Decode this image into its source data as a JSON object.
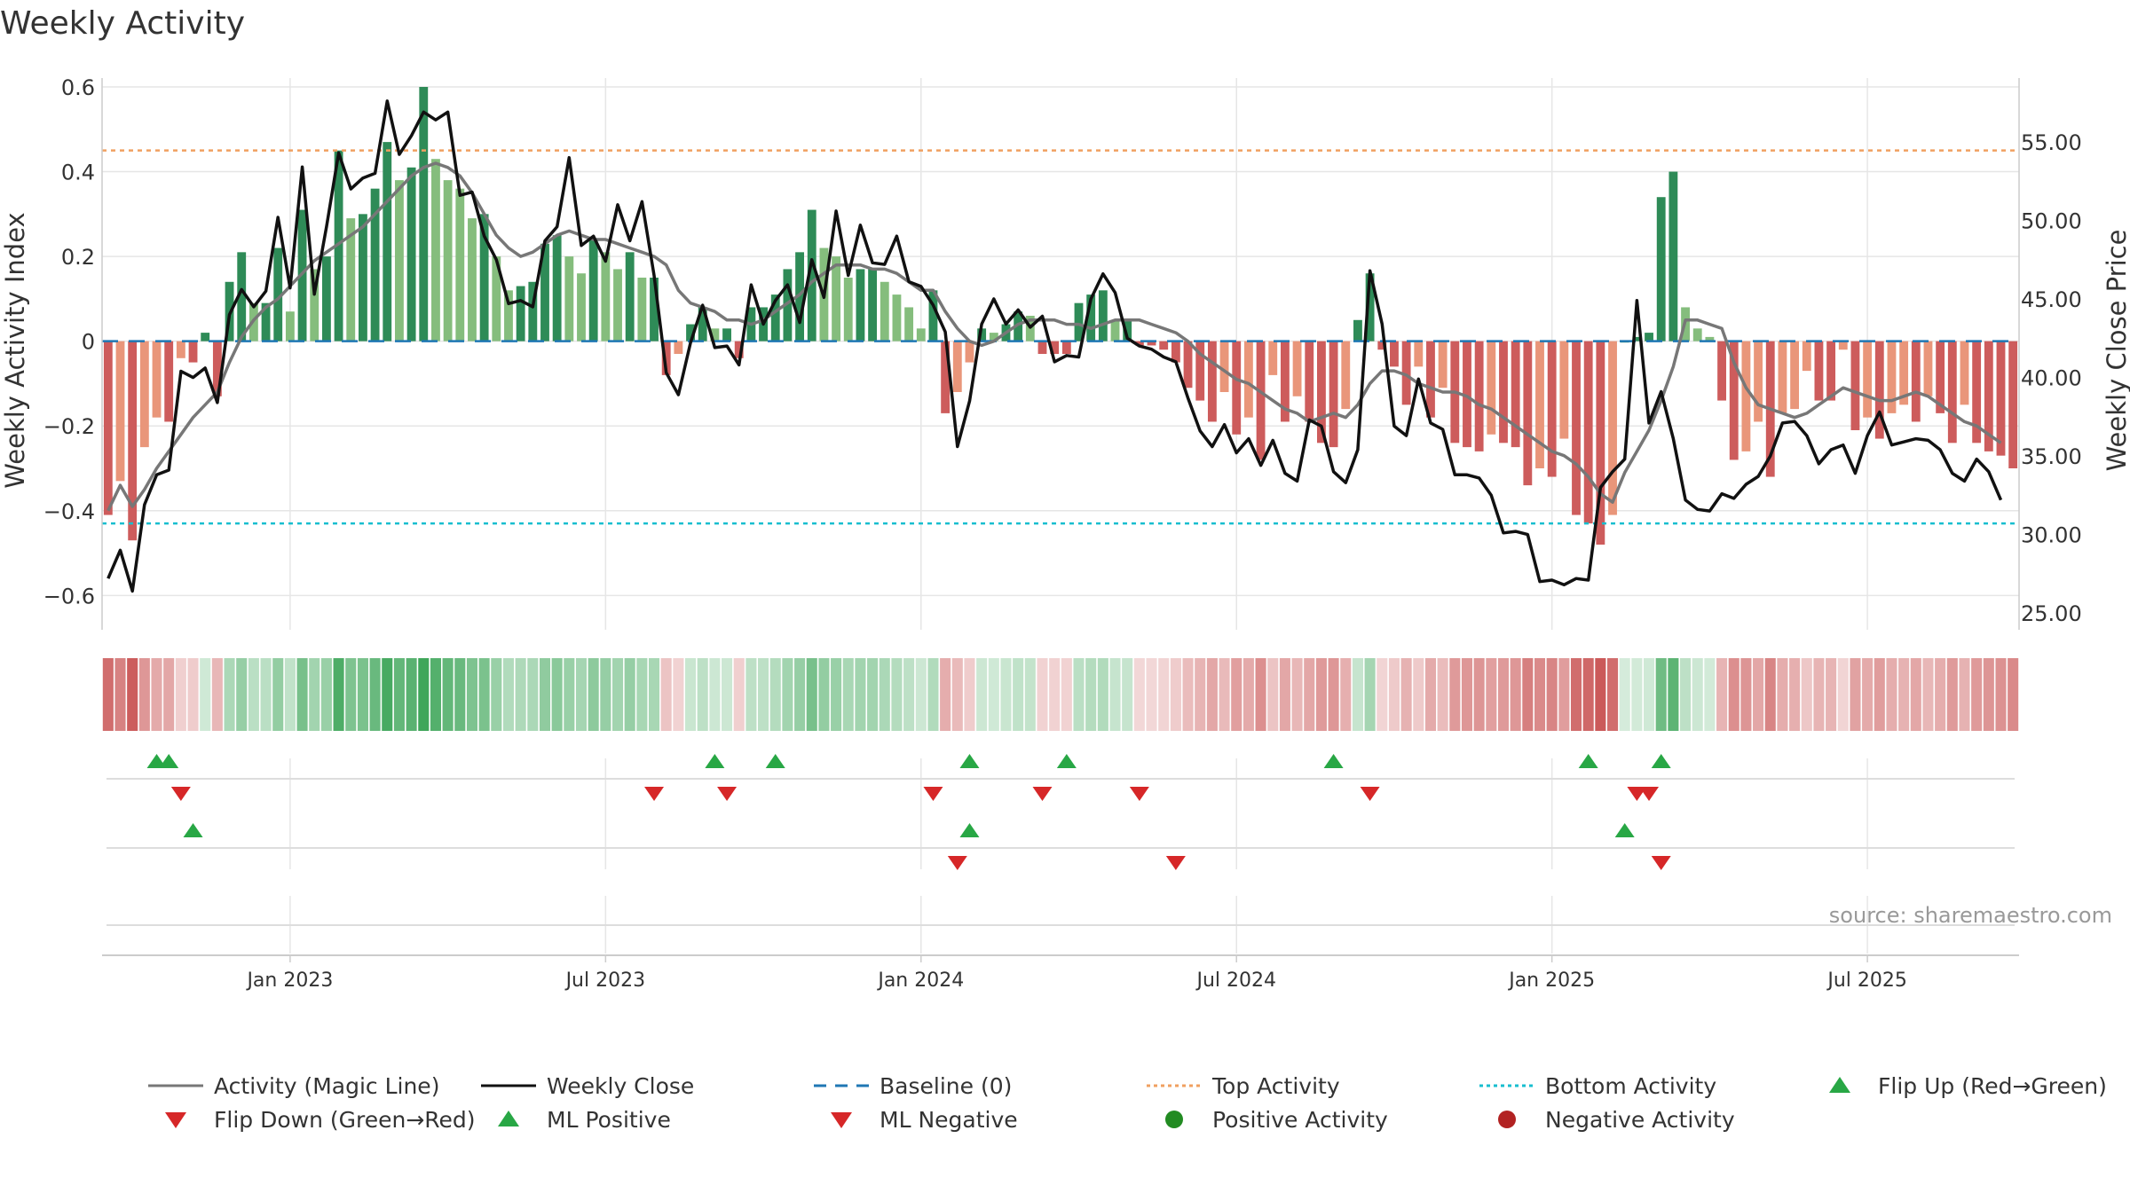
{
  "chart_data": {
    "type": "bar",
    "title": "Weekly Activity",
    "ylabel": "Weekly Activity Index",
    "y2label": "Weekly Close Price",
    "source": "source: sharemaestro.com",
    "ylim": [
      -0.66,
      0.6
    ],
    "y2lim": [
      24.5,
      58.5
    ],
    "yticks": [
      {
        "v": 0.6,
        "label": "0.6"
      },
      {
        "v": 0.4,
        "label": "0.4"
      },
      {
        "v": 0.2,
        "label": "0.2"
      },
      {
        "v": 0,
        "label": "0"
      },
      {
        "v": -0.2,
        "label": "−0.2"
      },
      {
        "v": -0.4,
        "label": "−0.4"
      },
      {
        "v": -0.6,
        "label": "−0.6"
      }
    ],
    "y2ticks": [
      {
        "v": 55,
        "label": "55.00"
      },
      {
        "v": 50,
        "label": "50.00"
      },
      {
        "v": 45,
        "label": "45.00"
      },
      {
        "v": 40,
        "label": "40.00"
      },
      {
        "v": 35,
        "label": "35.00"
      },
      {
        "v": 30,
        "label": "30.00"
      },
      {
        "v": 25,
        "label": "25.00"
      }
    ],
    "xticks": [
      {
        "week": 15,
        "label": "Jan 2023"
      },
      {
        "week": 41,
        "label": "Jul 2023"
      },
      {
        "week": 67,
        "label": "Jan 2024"
      },
      {
        "week": 93,
        "label": "Jul 2024"
      },
      {
        "week": 119,
        "label": "Jan 2025"
      },
      {
        "week": 145,
        "label": "Jul 2025"
      }
    ],
    "top_activity": 0.45,
    "bottom_activity": -0.43,
    "activity": [
      -0.41,
      -0.33,
      -0.47,
      -0.25,
      -0.18,
      -0.19,
      -0.04,
      -0.05,
      0.02,
      -0.13,
      0.14,
      0.21,
      0.09,
      0.09,
      0.22,
      0.07,
      0.31,
      0.17,
      0.2,
      0.45,
      0.29,
      0.3,
      0.36,
      0.47,
      0.38,
      0.41,
      0.6,
      0.43,
      0.38,
      0.36,
      0.29,
      0.3,
      0.2,
      0.12,
      0.13,
      0.14,
      0.23,
      0.25,
      0.2,
      0.16,
      0.24,
      0.21,
      0.17,
      0.21,
      0.15,
      0.15,
      -0.08,
      -0.03,
      0.04,
      0.08,
      0.03,
      0.03,
      -0.04,
      0.08,
      0.08,
      0.11,
      0.17,
      0.21,
      0.31,
      0.22,
      0.2,
      0.15,
      0.17,
      0.17,
      0.14,
      0.11,
      0.08,
      0.03,
      0.12,
      -0.17,
      -0.12,
      -0.05,
      0.03,
      0.02,
      0.04,
      0.07,
      0.06,
      -0.03,
      -0.03,
      -0.03,
      0.09,
      0.11,
      0.12,
      0.05,
      0.05,
      -0.01,
      -0.01,
      -0.02,
      -0.05,
      -0.11,
      -0.14,
      -0.19,
      -0.12,
      -0.22,
      -0.18,
      -0.28,
      -0.08,
      -0.19,
      -0.13,
      -0.19,
      -0.24,
      -0.25,
      -0.16,
      0.05,
      0.16,
      -0.02,
      -0.06,
      -0.15,
      -0.06,
      -0.18,
      -0.11,
      -0.24,
      -0.25,
      -0.26,
      -0.22,
      -0.24,
      -0.25,
      -0.34,
      -0.3,
      -0.32,
      -0.23,
      -0.41,
      -0.43,
      -0.48,
      -0.41,
      0.0,
      0.01,
      0.02,
      0.34,
      0.4,
      0.08,
      0.03,
      0.01,
      -0.14,
      -0.28,
      -0.26,
      -0.19,
      -0.32,
      -0.17,
      -0.16,
      -0.07,
      -0.14,
      -0.14,
      -0.02,
      -0.21,
      -0.18,
      -0.23,
      -0.17,
      -0.15,
      -0.19,
      -0.13,
      -0.17,
      -0.24,
      -0.15,
      -0.24,
      -0.26,
      -0.27,
      -0.3
    ],
    "magic_line": [
      -0.4,
      -0.34,
      -0.39,
      -0.35,
      -0.3,
      -0.26,
      -0.22,
      -0.18,
      -0.15,
      -0.12,
      -0.05,
      0.01,
      0.05,
      0.08,
      0.1,
      0.13,
      0.16,
      0.19,
      0.21,
      0.23,
      0.25,
      0.27,
      0.3,
      0.33,
      0.36,
      0.39,
      0.41,
      0.42,
      0.41,
      0.39,
      0.35,
      0.3,
      0.25,
      0.22,
      0.2,
      0.21,
      0.23,
      0.25,
      0.26,
      0.25,
      0.24,
      0.24,
      0.23,
      0.22,
      0.21,
      0.2,
      0.18,
      0.12,
      0.09,
      0.08,
      0.07,
      0.05,
      0.05,
      0.04,
      0.05,
      0.07,
      0.09,
      0.11,
      0.14,
      0.16,
      0.18,
      0.18,
      0.18,
      0.17,
      0.17,
      0.16,
      0.14,
      0.12,
      0.12,
      0.07,
      0.03,
      0.0,
      -0.01,
      0.0,
      0.02,
      0.04,
      0.05,
      0.05,
      0.05,
      0.04,
      0.04,
      0.03,
      0.04,
      0.05,
      0.05,
      0.05,
      0.04,
      0.03,
      0.02,
      0.0,
      -0.03,
      -0.05,
      -0.07,
      -0.09,
      -0.1,
      -0.12,
      -0.14,
      -0.16,
      -0.17,
      -0.19,
      -0.18,
      -0.17,
      -0.18,
      -0.15,
      -0.1,
      -0.07,
      -0.07,
      -0.08,
      -0.1,
      -0.11,
      -0.12,
      -0.12,
      -0.13,
      -0.15,
      -0.16,
      -0.18,
      -0.2,
      -0.22,
      -0.24,
      -0.26,
      -0.27,
      -0.29,
      -0.32,
      -0.36,
      -0.38,
      -0.31,
      -0.26,
      -0.21,
      -0.14,
      -0.06,
      0.05,
      0.05,
      0.04,
      0.03,
      -0.05,
      -0.11,
      -0.15,
      -0.16,
      -0.17,
      -0.18,
      -0.17,
      -0.15,
      -0.13,
      -0.11,
      -0.12,
      -0.13,
      -0.14,
      -0.14,
      -0.13,
      -0.12,
      -0.13,
      -0.15,
      -0.17,
      -0.19,
      -0.2,
      -0.22,
      -0.24
    ],
    "weekly_close": [
      27.2,
      29.0,
      26.4,
      31.9,
      33.8,
      34.1,
      40.4,
      40.0,
      40.6,
      38.4,
      44.0,
      45.6,
      44.5,
      45.5,
      50.2,
      45.7,
      53.4,
      45.3,
      49.6,
      54.3,
      52.0,
      52.7,
      53.0,
      57.6,
      54.2,
      55.4,
      56.9,
      56.4,
      56.9,
      51.6,
      51.8,
      49.0,
      47.5,
      44.7,
      44.9,
      44.5,
      48.7,
      49.6,
      54.0,
      48.4,
      49.0,
      47.4,
      51.0,
      48.7,
      51.2,
      46.5,
      40.3,
      38.9,
      42.2,
      44.6,
      41.9,
      42.0,
      40.8,
      45.9,
      43.4,
      44.9,
      45.9,
      43.5,
      47.5,
      45.1,
      50.6,
      46.5,
      49.7,
      47.3,
      47.2,
      49.0,
      46.1,
      45.8,
      44.6,
      42.9,
      35.6,
      38.5,
      43.4,
      45.0,
      43.4,
      44.3,
      43.2,
      43.9,
      41.0,
      41.4,
      41.3,
      45.0,
      46.6,
      45.4,
      42.5,
      42.0,
      41.8,
      41.3,
      41.0,
      38.7,
      36.6,
      35.6,
      37.0,
      35.2,
      36.1,
      34.4,
      36.0,
      33.9,
      33.4,
      37.3,
      36.9,
      34.0,
      33.3,
      35.4,
      46.8,
      43.4,
      36.9,
      36.3,
      39.9,
      37.1,
      36.7,
      33.8,
      33.8,
      33.6,
      32.5,
      30.1,
      30.2,
      30.0,
      27.0,
      27.1,
      26.8,
      27.2,
      27.1,
      33.0,
      34.0,
      34.8,
      44.9,
      37.1,
      39.1,
      36.1,
      32.2,
      31.6,
      31.5,
      32.6,
      32.3,
      33.2,
      33.7,
      35.0,
      37.1,
      37.2,
      36.3,
      34.5,
      35.4,
      35.7,
      33.9,
      36.3,
      37.8,
      35.7,
      35.9,
      36.1,
      36.0,
      35.4,
      33.9,
      33.4,
      34.8,
      34.0,
      32.2
    ],
    "flip_up": [
      4,
      5,
      50,
      55,
      71,
      79,
      101,
      122,
      128
    ],
    "flip_down": [
      6,
      45,
      51,
      68,
      77,
      85,
      104,
      126,
      127
    ],
    "ml_positive": [
      7,
      71,
      125
    ],
    "ml_negative": [
      70,
      88,
      128
    ],
    "legend": [
      {
        "key": "magic",
        "label": "Activity (Magic Line)"
      },
      {
        "key": "close",
        "label": "Weekly Close"
      },
      {
        "key": "baseline",
        "label": "Baseline (0)"
      },
      {
        "key": "top",
        "label": "Top Activity"
      },
      {
        "key": "bottom",
        "label": "Bottom Activity"
      },
      {
        "key": "flipup",
        "label": "Flip Up (Red→Green)"
      },
      {
        "key": "flipdown",
        "label": "Flip Down (Green→Red)"
      },
      {
        "key": "mlpos",
        "label": "ML Positive"
      },
      {
        "key": "mlneg",
        "label": "ML Negative"
      },
      {
        "key": "posact",
        "label": "Positive Activity"
      },
      {
        "key": "negact",
        "label": "Negative Activity"
      }
    ]
  },
  "colors": {
    "text": "#333333",
    "grid": "#e6e6e6",
    "magic_line": "#777777",
    "weekly_close": "#111111",
    "baseline": "#1f77b4",
    "top_activity": "#f0a060",
    "bottom_activity": "#17becf",
    "green_dark": "#2e8b57",
    "green_light": "#85bd7d",
    "red_dark": "#cd5c5c",
    "red_light": "#e9967a",
    "marker_up": "#28a745",
    "marker_down": "#d62728",
    "pos_dot": "#228b22",
    "neg_dot": "#b22222",
    "source": "#999999"
  }
}
